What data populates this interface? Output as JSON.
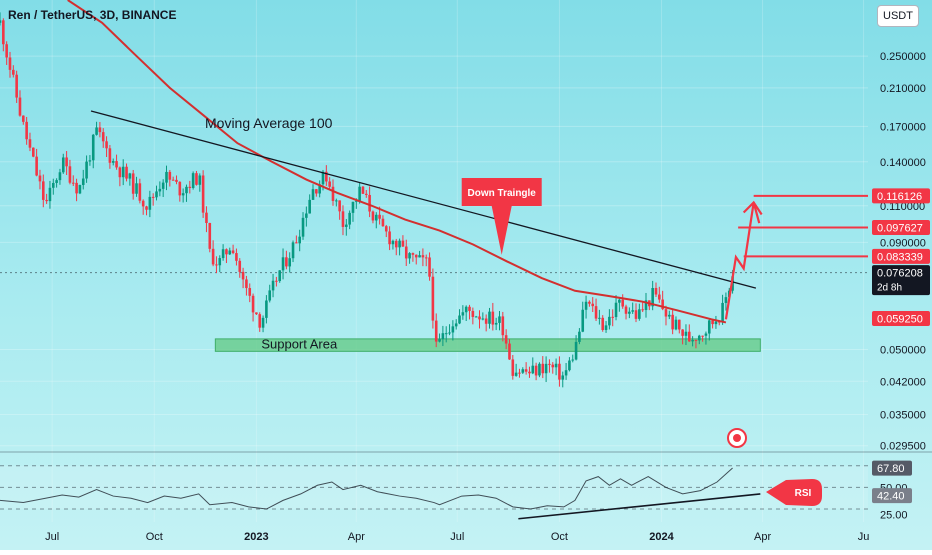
{
  "header": {
    "title": "Ren / TetherUS, 3D, BINANCE",
    "currency_button": "USDT"
  },
  "colors": {
    "background": "#9ee6ee",
    "ma_line": "#d32f2f",
    "trend_line": "#131722",
    "up": "#089981",
    "down": "#f23645",
    "support_zone": "#66cc8a",
    "label_red": "#f23645",
    "label_dark": "#131722"
  },
  "annotations": {
    "moving_average": "Moving Average 100",
    "support": "Support Area",
    "down_triangle": "Down Traingle",
    "rsi": "RSI"
  },
  "chart_data": [
    {
      "type": "candlestick",
      "title": "Ren / TetherUS, 3D, BINANCE",
      "y_scale": "log",
      "ylim": [
        0.0285,
        0.34
      ],
      "y_ticks": [
        "0.250000",
        "0.210000",
        "0.170000",
        "0.140000",
        "0.110000",
        "0.090000",
        "0.050000",
        "0.042000",
        "0.035000",
        "0.029500"
      ],
      "y_tick_values": [
        0.25,
        0.21,
        0.17,
        0.14,
        0.11,
        0.09,
        0.05,
        0.042,
        0.035,
        0.0295
      ],
      "x_ticks": [
        "Jul",
        "Oct",
        "2023",
        "Apr",
        "Jul",
        "Oct",
        "2024",
        "Apr",
        "Ju"
      ],
      "x_tick_dates": [
        "2022-07-01",
        "2022-10-01",
        "2023-01-01",
        "2023-04-01",
        "2023-07-01",
        "2023-10-01",
        "2024-01-01",
        "2024-04-01",
        "2024-07-01"
      ],
      "xlim": [
        "2022-05-15",
        "2024-07-05"
      ],
      "price_labels": [
        {
          "text": "0.116126",
          "value": 0.116126,
          "style": "red"
        },
        {
          "text": "0.097627",
          "value": 0.097627,
          "style": "red"
        },
        {
          "text": "0.083339",
          "value": 0.083339,
          "style": "red"
        },
        {
          "text": "0.076208",
          "value": 0.076208,
          "style": "dark",
          "sub": "2d 8h"
        },
        {
          "text": "0.059250",
          "value": 0.05925,
          "style": "red"
        }
      ],
      "series": [
        {
          "name": "Moving Average 100",
          "kind": "line",
          "points": [
            [
              "2022-07-15",
              0.34
            ],
            [
              "2022-08-15",
              0.3
            ],
            [
              "2022-09-15",
              0.25
            ],
            [
              "2022-10-15",
              0.21
            ],
            [
              "2022-11-15",
              0.18
            ],
            [
              "2022-12-15",
              0.155
            ],
            [
              "2023-01-15",
              0.14
            ],
            [
              "2023-02-15",
              0.127
            ],
            [
              "2023-03-15",
              0.118
            ],
            [
              "2023-04-15",
              0.11
            ],
            [
              "2023-05-15",
              0.102
            ],
            [
              "2023-06-15",
              0.096
            ],
            [
              "2023-07-15",
              0.089
            ],
            [
              "2023-08-15",
              0.081
            ],
            [
              "2023-09-15",
              0.074
            ],
            [
              "2023-10-15",
              0.069
            ],
            [
              "2023-11-15",
              0.067
            ],
            [
              "2023-12-15",
              0.065
            ],
            [
              "2024-01-15",
              0.062
            ],
            [
              "2024-02-15",
              0.059
            ],
            [
              "2024-02-28",
              0.058
            ]
          ]
        },
        {
          "name": "Trend line",
          "kind": "line",
          "points": [
            [
              "2022-08-05",
              0.185
            ],
            [
              "2024-03-26",
              0.07
            ]
          ]
        },
        {
          "name": "Projection",
          "kind": "line",
          "points": [
            [
              "2024-02-28",
              0.059
            ],
            [
              "2024-03-08",
              0.083
            ],
            [
              "2024-03-15",
              0.078
            ],
            [
              "2024-03-24",
              0.112
            ],
            [
              "2024-03-29",
              0.1
            ]
          ]
        }
      ],
      "support_zone": {
        "from": "2022-11-25",
        "to": "2024-03-30",
        "low": 0.0495,
        "high": 0.053
      },
      "targets": [
        {
          "from": "2024-03-15",
          "value": 0.083339
        },
        {
          "from": "2024-03-10",
          "value": 0.097627
        },
        {
          "from": "2024-03-24",
          "value": 0.116126
        }
      ],
      "ohlc_path": [
        [
          "2022-05-15",
          0.3
        ],
        [
          "2022-06-05",
          0.17
        ],
        [
          "2022-06-25",
          0.11
        ],
        [
          "2022-07-10",
          0.14
        ],
        [
          "2022-07-25",
          0.12
        ],
        [
          "2022-08-10",
          0.165
        ],
        [
          "2022-08-25",
          0.14
        ],
        [
          "2022-09-10",
          0.125
        ],
        [
          "2022-09-25",
          0.11
        ],
        [
          "2022-10-10",
          0.13
        ],
        [
          "2022-10-25",
          0.12
        ],
        [
          "2022-11-10",
          0.13
        ],
        [
          "2022-11-20",
          0.085
        ],
        [
          "2022-11-28",
          0.08
        ],
        [
          "2022-12-10",
          0.09
        ],
        [
          "2022-12-20",
          0.072
        ],
        [
          "2023-01-05",
          0.058
        ],
        [
          "2023-01-20",
          0.075
        ],
        [
          "2023-02-05",
          0.09
        ],
        [
          "2023-02-20",
          0.12
        ],
        [
          "2023-03-05",
          0.13
        ],
        [
          "2023-03-20",
          0.1
        ],
        [
          "2023-04-05",
          0.12
        ],
        [
          "2023-04-20",
          0.1
        ],
        [
          "2023-05-05",
          0.09
        ],
        [
          "2023-05-20",
          0.082
        ],
        [
          "2023-06-05",
          0.08
        ],
        [
          "2023-06-12",
          0.05
        ],
        [
          "2023-06-25",
          0.058
        ],
        [
          "2023-07-10",
          0.062
        ],
        [
          "2023-07-25",
          0.06
        ],
        [
          "2023-08-10",
          0.058
        ],
        [
          "2023-08-20",
          0.045
        ],
        [
          "2023-09-05",
          0.044
        ],
        [
          "2023-09-20",
          0.046
        ],
        [
          "2023-10-05",
          0.043
        ],
        [
          "2023-10-15",
          0.05
        ],
        [
          "2023-10-25",
          0.065
        ],
        [
          "2023-11-10",
          0.057
        ],
        [
          "2023-11-25",
          0.065
        ],
        [
          "2023-12-10",
          0.06
        ],
        [
          "2023-12-25",
          0.068
        ],
        [
          "2024-01-10",
          0.058
        ],
        [
          "2024-01-25",
          0.053
        ],
        [
          "2024-02-10",
          0.056
        ],
        [
          "2024-02-25",
          0.062
        ],
        [
          "2024-03-05",
          0.076
        ]
      ]
    },
    {
      "type": "line",
      "name": "RSI",
      "ylim": [
        18,
        80
      ],
      "y_ticks": [
        "50.00",
        "25.00"
      ],
      "y_tick_values": [
        50,
        25
      ],
      "band": [
        30,
        70
      ],
      "value_labels": [
        {
          "text": "67.80",
          "value": 67.8
        },
        {
          "text": "42.40",
          "value": 42.4
        }
      ],
      "trend_line": [
        [
          "2023-08-25",
          21
        ],
        [
          "2024-03-30",
          44
        ]
      ],
      "points": [
        [
          "2022-05-15",
          38
        ],
        [
          "2022-06-05",
          36
        ],
        [
          "2022-06-25",
          40
        ],
        [
          "2022-07-10",
          43
        ],
        [
          "2022-07-25",
          41
        ],
        [
          "2022-08-10",
          48
        ],
        [
          "2022-08-25",
          42
        ],
        [
          "2022-09-10",
          40
        ],
        [
          "2022-09-25",
          36
        ],
        [
          "2022-10-10",
          42
        ],
        [
          "2022-10-25",
          40
        ],
        [
          "2022-11-10",
          44
        ],
        [
          "2022-11-20",
          34
        ],
        [
          "2022-12-10",
          36
        ],
        [
          "2022-12-25",
          32
        ],
        [
          "2023-01-10",
          30
        ],
        [
          "2023-01-25",
          38
        ],
        [
          "2023-02-10",
          44
        ],
        [
          "2023-02-25",
          52
        ],
        [
          "2023-03-10",
          55
        ],
        [
          "2023-03-20",
          48
        ],
        [
          "2023-04-05",
          52
        ],
        [
          "2023-04-20",
          46
        ],
        [
          "2023-05-10",
          42
        ],
        [
          "2023-05-25",
          40
        ],
        [
          "2023-06-10",
          36
        ],
        [
          "2023-06-15",
          34
        ],
        [
          "2023-07-05",
          42
        ],
        [
          "2023-07-20",
          43
        ],
        [
          "2023-08-05",
          40
        ],
        [
          "2023-08-20",
          32
        ],
        [
          "2023-09-05",
          30
        ],
        [
          "2023-09-20",
          33
        ],
        [
          "2023-10-05",
          32
        ],
        [
          "2023-10-15",
          38
        ],
        [
          "2023-10-25",
          56
        ],
        [
          "2023-11-05",
          60
        ],
        [
          "2023-11-15",
          52
        ],
        [
          "2023-11-25",
          58
        ],
        [
          "2023-12-05",
          52
        ],
        [
          "2023-12-20",
          60
        ],
        [
          "2024-01-05",
          50
        ],
        [
          "2024-01-20",
          44
        ],
        [
          "2024-02-05",
          47
        ],
        [
          "2024-02-20",
          55
        ],
        [
          "2024-03-05",
          68
        ]
      ]
    }
  ]
}
